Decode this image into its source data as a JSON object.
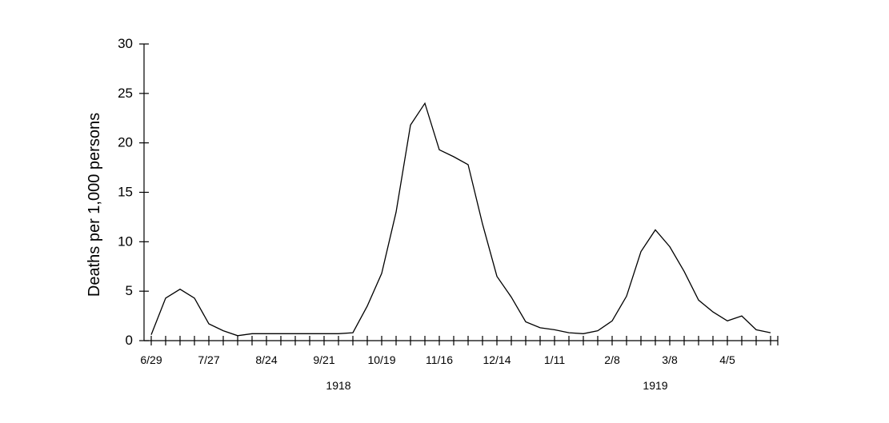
{
  "chart_data": {
    "type": "line",
    "title": "",
    "xlabel": "",
    "ylabel": "Deaths per 1,000 persons",
    "ylim": [
      0,
      30
    ],
    "y_ticks": [
      0,
      5,
      10,
      15,
      20,
      25,
      30
    ],
    "grid": false,
    "legend": "none",
    "x_tick_labels": [
      "6/29",
      "7/27",
      "8/24",
      "9/21",
      "10/19",
      "11/16",
      "12/14",
      "1/11",
      "2/8",
      "3/8",
      "4/5"
    ],
    "year_labels": [
      "1918",
      "1919"
    ],
    "series": [
      {
        "x": [
          "1918-06-29",
          "1918-07-06",
          "1918-07-13",
          "1918-07-20",
          "1918-07-27",
          "1918-08-03",
          "1918-08-10",
          "1918-08-17",
          "1918-08-24",
          "1918-08-31",
          "1918-09-07",
          "1918-09-14",
          "1918-09-21",
          "1918-09-28",
          "1918-10-05",
          "1918-10-12",
          "1918-10-19",
          "1918-10-26",
          "1918-11-02",
          "1918-11-09",
          "1918-11-16",
          "1918-11-23",
          "1918-11-30",
          "1918-12-07",
          "1918-12-14",
          "1918-12-21",
          "1918-12-28",
          "1919-01-04",
          "1919-01-11",
          "1919-01-18",
          "1919-01-25",
          "1919-02-01",
          "1919-02-08",
          "1919-02-15",
          "1919-02-22",
          "1919-03-01",
          "1919-03-08",
          "1919-03-15",
          "1919-03-22",
          "1919-03-29",
          "1919-04-05",
          "1919-04-12",
          "1919-04-19",
          "1919-04-26"
        ],
        "values": [
          0.6,
          4.3,
          5.2,
          4.3,
          1.7,
          1.0,
          0.5,
          0.7,
          0.7,
          0.7,
          0.7,
          0.7,
          0.7,
          0.7,
          0.8,
          3.5,
          6.8,
          13.0,
          21.8,
          24.0,
          19.3,
          18.6,
          17.8,
          11.8,
          6.5,
          4.4,
          1.9,
          1.3,
          1.1,
          0.8,
          0.7,
          1.0,
          2.0,
          4.5,
          9.0,
          11.2,
          9.5,
          7.0,
          4.1,
          2.9,
          2.0,
          2.5,
          1.1,
          0.8
        ]
      }
    ]
  }
}
